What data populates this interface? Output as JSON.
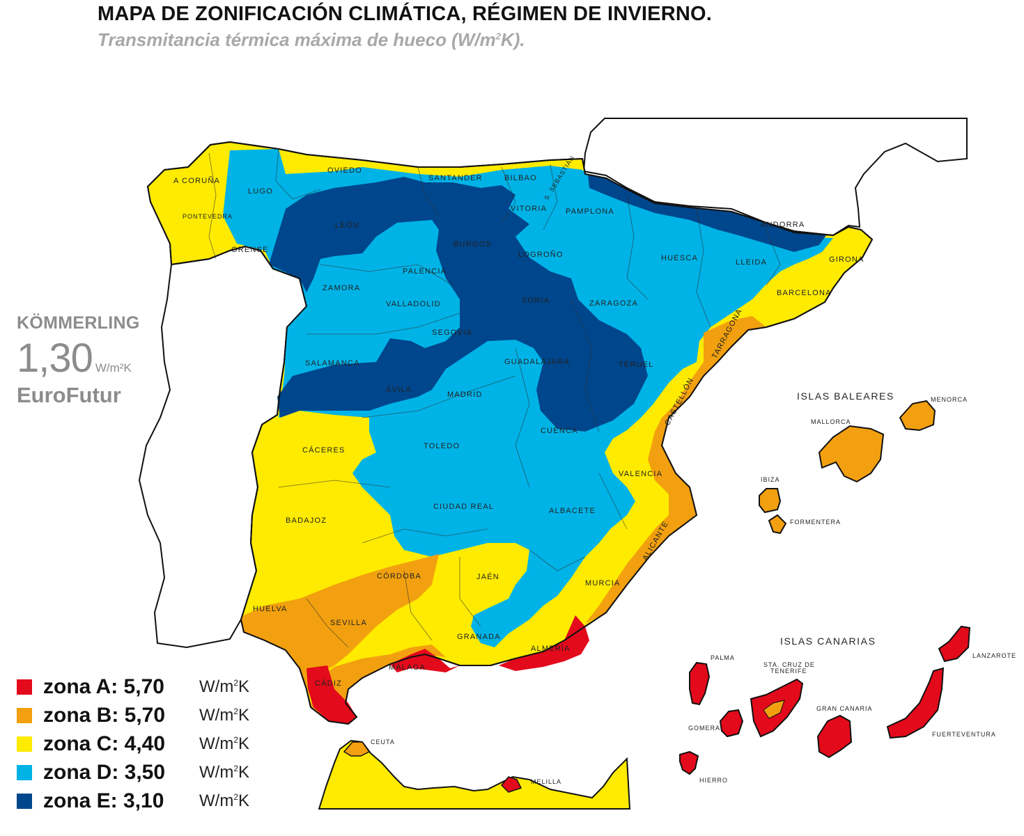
{
  "header": {
    "title": "MAPA DE ZONIFICACIÓN CLIMÁTICA, RÉGIMEN DE INVIERNO.",
    "subtitle_prefix": "Transmitancia térmica máxima de hueco (W/m",
    "subtitle_sup": "2",
    "subtitle_suffix": "K)."
  },
  "brand": {
    "name": "KÖMMERLING",
    "value": "1,30",
    "unit": "W/m²K",
    "product": "EuroFutur"
  },
  "colors": {
    "zone_a": "#e30a1b",
    "zone_b": "#f2a00f",
    "zone_c": "#ffeb00",
    "zone_d": "#00b3e7",
    "zone_e": "#00468c",
    "outline": "#111111"
  },
  "legend": [
    {
      "label": "zona A: 5,70",
      "unit_prefix": "W/m",
      "unit_sup": "2",
      "unit_suffix": "K",
      "color_key": "zone_a"
    },
    {
      "label": "zona B: 5,70",
      "unit_prefix": "W/m",
      "unit_sup": "2",
      "unit_suffix": "K",
      "color_key": "zone_b"
    },
    {
      "label": "zona C: 4,40",
      "unit_prefix": "W/m",
      "unit_sup": "2",
      "unit_suffix": "K",
      "color_key": "zone_c"
    },
    {
      "label": "zona D: 3,50",
      "unit_prefix": "W/m",
      "unit_sup": "2",
      "unit_suffix": "K",
      "color_key": "zone_d"
    },
    {
      "label": "zona E: 3,10",
      "unit_prefix": "W/m",
      "unit_sup": "2",
      "unit_suffix": "K",
      "color_key": "zone_e"
    }
  ],
  "map": {
    "provinces": {
      "a_coruna": "A CORUÑA",
      "lugo": "LUGO",
      "oviedo": "OVIEDO",
      "santander": "SANTANDER",
      "bilbao": "BILBAO",
      "s_sebastian": "S. SEBASTIÁN",
      "pontevedra": "PONTEVEDRA",
      "vitoria": "VITORIA",
      "pamplona": "PAMPLONA",
      "leon": "LEÓN",
      "andorra": "ANDORRA",
      "orense": "ORENSE",
      "burgos": "BURGOS",
      "logrono": "LOGROÑO",
      "huesca": "HUESCA",
      "lleida": "LLEIDA",
      "girona": "GIRONA",
      "palencia": "PALENCIA",
      "zamora": "ZAMORA",
      "barcelona": "BARCELONA",
      "valladolid": "VALLADOLID",
      "soria": "SORIA",
      "zaragoza": "ZARAGOZA",
      "segovia": "SEGOVIA",
      "tarragona": "TARRAGONA",
      "salamanca": "SALAMANCA",
      "guadalajara": "GUADALAJARA",
      "teruel": "TERUEL",
      "avila": "ÁVILA",
      "madrid": "MADRID",
      "castellon": "CASTELLÓN",
      "cuenca": "CUENCA",
      "caceres": "CÁCERES",
      "toledo": "TOLEDO",
      "valencia": "VALENCIA",
      "ciudad_real": "CIUDAD REAL",
      "albacete": "ALBACETE",
      "badajoz": "BADAJOZ",
      "alicante": "ALICANTE",
      "cordoba": "CÓRDOBA",
      "jaen": "JAÉN",
      "murcia": "MURCIA",
      "huelva": "HUELVA",
      "sevilla": "SEVILLA",
      "granada": "GRANADA",
      "almeria": "ALMERÍA",
      "malaga": "MÁLAGA",
      "cadiz": "CÁDIZ"
    },
    "baleares": {
      "group": "ISLAS BALEARES",
      "menorca": "MENORCA",
      "mallorca": "MALLORCA",
      "ibiza": "IBIZA",
      "formentera": "FORMENTERA"
    },
    "canarias": {
      "group": "ISLAS CANARIAS",
      "lanzarote": "LANZAROTE",
      "palma": "PALMA",
      "sta_cruz_1": "STA. CRUZ DE",
      "sta_cruz_2": "TENERIFE",
      "gran_canaria": "GRAN CANARIA",
      "gomera": "GOMERA",
      "fuerteventura": "FUERTEVENTURA",
      "hierro": "HIERRO"
    },
    "ceuta_melilla": {
      "ceuta": "CEUTA",
      "melilla": "MELILLA"
    }
  }
}
